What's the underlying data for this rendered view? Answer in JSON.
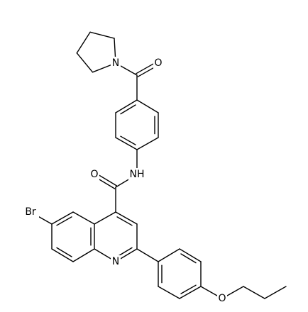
{
  "atoms": [
    "O",
    "N",
    "NH",
    "O",
    "Br",
    "N",
    "O"
  ]
}
